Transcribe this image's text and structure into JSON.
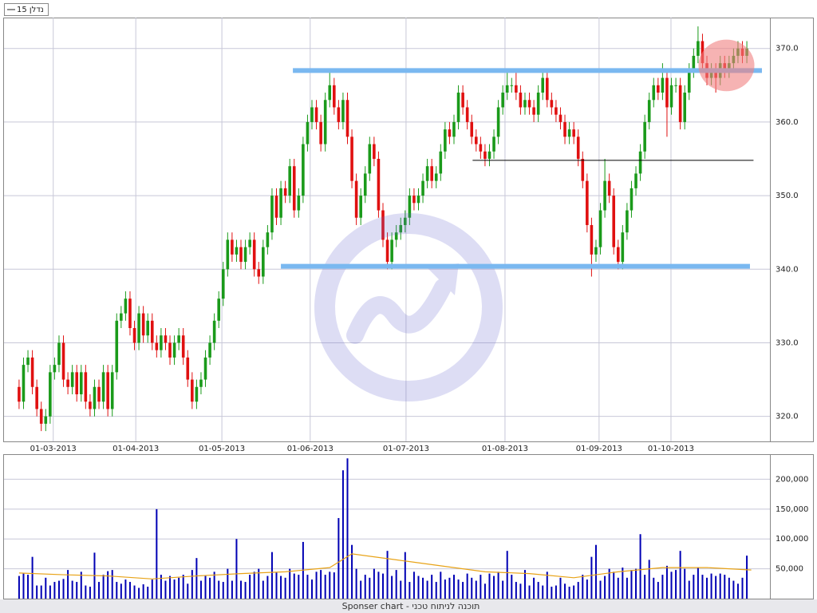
{
  "chart_data": [
    {
      "type": "candlestick",
      "legend": "נדלן 15",
      "xlim": [
        -3.4,
        169.2
      ],
      "xticks": [
        {
          "value": 7.7,
          "label": "01-03-2013"
        },
        {
          "value": 26.3,
          "label": "01-04-2013"
        },
        {
          "value": 45.7,
          "label": "01-05-2013"
        },
        {
          "value": 65.6,
          "label": "01-06-2013"
        },
        {
          "value": 87.2,
          "label": "01-07-2013"
        },
        {
          "value": 109.5,
          "label": "01-08-2013"
        },
        {
          "value": 130.7,
          "label": "01-09-2013"
        },
        {
          "value": 146.9,
          "label": "01-10-2013"
        }
      ],
      "ylim": [
        316.6,
        374.2
      ],
      "yticks": [
        {
          "value": 320,
          "label": "320.0"
        },
        {
          "value": 330,
          "label": "330.0"
        },
        {
          "value": 340,
          "label": "340.0"
        },
        {
          "value": 350,
          "label": "350.0"
        },
        {
          "value": 360,
          "label": "360.0"
        },
        {
          "value": 370,
          "label": "370.0"
        }
      ],
      "grid": true,
      "up_color": "#1a9a1a",
      "down_color": "#e01010",
      "values": [
        [
          324,
          325,
          321,
          322
        ],
        [
          322,
          328,
          321,
          327
        ],
        [
          327,
          329,
          326,
          328
        ],
        [
          328,
          329,
          323,
          324
        ],
        [
          324,
          325,
          320,
          321
        ],
        [
          321,
          322,
          318,
          319
        ],
        [
          319,
          321,
          318,
          320
        ],
        [
          320,
          327,
          319,
          326
        ],
        [
          326,
          328,
          325,
          327
        ],
        [
          327,
          331,
          326,
          330
        ],
        [
          330,
          331,
          324,
          325
        ],
        [
          325,
          326,
          323,
          324
        ],
        [
          324,
          327,
          323,
          326
        ],
        [
          326,
          327,
          322,
          323
        ],
        [
          323,
          327,
          322,
          326
        ],
        [
          326,
          327,
          321,
          322
        ],
        [
          322,
          323,
          320,
          321
        ],
        [
          321,
          325,
          320,
          324
        ],
        [
          324,
          325,
          321,
          322
        ],
        [
          322,
          327,
          321,
          326
        ],
        [
          326,
          327,
          320,
          321
        ],
        [
          321,
          327,
          320,
          326
        ],
        [
          326,
          334,
          325,
          333
        ],
        [
          333,
          335,
          332,
          334
        ],
        [
          334,
          337,
          333,
          336
        ],
        [
          336,
          337,
          331,
          332
        ],
        [
          332,
          333,
          329,
          330
        ],
        [
          330,
          335,
          329,
          334
        ],
        [
          334,
          335,
          330,
          331
        ],
        [
          331,
          334,
          330,
          333
        ],
        [
          333,
          334,
          329,
          330
        ],
        [
          330,
          331,
          328,
          329
        ],
        [
          329,
          332,
          328,
          331
        ],
        [
          331,
          332,
          329,
          330
        ],
        [
          330,
          331,
          327,
          328
        ],
        [
          328,
          331,
          327,
          330
        ],
        [
          330,
          332,
          329,
          331
        ],
        [
          331,
          332,
          327,
          328
        ],
        [
          328,
          329,
          324,
          325
        ],
        [
          325,
          326,
          321,
          322
        ],
        [
          322,
          325,
          321,
          324
        ],
        [
          324,
          326,
          323,
          325
        ],
        [
          325,
          329,
          324,
          328
        ],
        [
          328,
          331,
          327,
          330
        ],
        [
          330,
          334,
          329,
          333
        ],
        [
          333,
          337,
          332,
          336
        ],
        [
          336,
          341,
          335,
          340
        ],
        [
          340,
          345,
          339,
          344
        ],
        [
          344,
          345,
          341,
          342
        ],
        [
          342,
          344,
          341,
          343
        ],
        [
          343,
          344,
          340,
          341
        ],
        [
          341,
          344,
          340,
          343
        ],
        [
          343,
          345,
          342,
          344
        ],
        [
          344,
          345,
          339,
          340
        ],
        [
          340,
          341,
          338,
          339
        ],
        [
          339,
          344,
          338,
          343
        ],
        [
          343,
          346,
          342,
          345
        ],
        [
          345,
          351,
          344,
          350
        ],
        [
          350,
          351,
          346,
          347
        ],
        [
          347,
          352,
          346,
          351
        ],
        [
          351,
          352,
          349,
          350
        ],
        [
          350,
          355,
          349,
          354
        ],
        [
          354,
          355,
          347,
          348
        ],
        [
          348,
          351,
          347,
          350
        ],
        [
          350,
          358,
          349,
          357
        ],
        [
          357,
          361,
          356,
          360
        ],
        [
          360,
          363,
          359,
          362
        ],
        [
          362,
          363,
          359,
          360
        ],
        [
          360,
          361,
          356,
          357
        ],
        [
          357,
          364,
          356,
          363
        ],
        [
          363,
          367,
          362,
          365
        ],
        [
          365,
          366,
          361,
          362
        ],
        [
          362,
          363,
          359,
          360
        ],
        [
          360,
          364,
          359,
          363
        ],
        [
          363,
          364,
          357,
          358
        ],
        [
          358,
          359,
          351,
          352
        ],
        [
          352,
          353,
          346,
          347
        ],
        [
          347,
          351,
          346,
          350
        ],
        [
          350,
          354,
          349,
          353
        ],
        [
          353,
          358,
          352,
          357
        ],
        [
          357,
          358,
          354,
          355
        ],
        [
          355,
          356,
          347,
          348
        ],
        [
          348,
          349,
          343,
          344
        ],
        [
          344,
          345,
          340,
          341
        ],
        [
          341,
          345,
          340,
          344
        ],
        [
          344,
          346,
          343,
          345
        ],
        [
          345,
          347,
          344,
          346
        ],
        [
          346,
          348,
          345,
          347
        ],
        [
          347,
          351,
          346,
          350
        ],
        [
          350,
          351,
          348,
          349
        ],
        [
          349,
          351,
          348,
          350
        ],
        [
          350,
          353,
          349,
          352
        ],
        [
          352,
          355,
          351,
          354
        ],
        [
          354,
          355,
          351,
          352
        ],
        [
          352,
          354,
          351,
          353
        ],
        [
          353,
          357,
          352,
          356
        ],
        [
          356,
          360,
          355,
          359
        ],
        [
          359,
          360,
          357,
          358
        ],
        [
          358,
          361,
          357,
          360
        ],
        [
          360,
          365,
          359,
          364
        ],
        [
          364,
          365,
          361,
          362
        ],
        [
          362,
          363,
          359,
          360
        ],
        [
          360,
          361,
          357,
          358
        ],
        [
          358,
          359,
          356,
          357
        ],
        [
          357,
          358,
          355,
          356
        ],
        [
          356,
          357,
          354,
          355
        ],
        [
          355,
          357,
          354,
          356
        ],
        [
          356,
          359,
          355,
          358
        ],
        [
          358,
          363,
          357,
          362
        ],
        [
          362,
          365,
          361,
          364
        ],
        [
          364,
          367,
          363,
          365
        ],
        [
          365,
          366,
          364,
          365
        ],
        [
          365,
          367,
          363,
          364
        ],
        [
          364,
          365,
          361,
          362
        ],
        [
          362,
          364,
          361,
          363
        ],
        [
          363,
          364,
          361,
          362
        ],
        [
          362,
          363,
          360,
          361
        ],
        [
          361,
          365,
          360,
          364
        ],
        [
          364,
          367,
          363,
          366
        ],
        [
          366,
          367,
          362,
          363
        ],
        [
          363,
          364,
          361,
          362
        ],
        [
          362,
          363,
          360,
          361
        ],
        [
          361,
          362,
          359,
          360
        ],
        [
          360,
          361,
          357,
          358
        ],
        [
          358,
          360,
          357,
          359
        ],
        [
          359,
          360,
          357,
          358
        ],
        [
          358,
          359,
          354,
          355
        ],
        [
          355,
          356,
          351,
          352
        ],
        [
          352,
          353,
          345,
          346
        ],
        [
          346,
          347,
          339,
          342
        ],
        [
          342,
          344,
          341,
          343
        ],
        [
          343,
          349,
          342,
          348
        ],
        [
          348,
          355,
          347,
          352
        ],
        [
          352,
          353,
          349,
          350
        ],
        [
          350,
          351,
          342,
          343
        ],
        [
          343,
          344,
          340,
          341
        ],
        [
          341,
          346,
          340,
          345
        ],
        [
          345,
          349,
          344,
          348
        ],
        [
          348,
          352,
          347,
          351
        ],
        [
          351,
          354,
          350,
          353
        ],
        [
          353,
          357,
          352,
          356
        ],
        [
          356,
          361,
          355,
          360
        ],
        [
          360,
          364,
          359,
          363
        ],
        [
          363,
          366,
          362,
          365
        ],
        [
          365,
          366,
          363,
          364
        ],
        [
          364,
          368,
          363,
          366
        ],
        [
          366,
          367,
          358,
          362
        ],
        [
          362,
          366,
          361,
          365
        ],
        [
          365,
          366,
          364,
          365
        ],
        [
          365,
          366,
          359,
          360
        ],
        [
          360,
          365,
          359,
          364
        ],
        [
          364,
          368,
          363,
          367
        ],
        [
          367,
          370,
          366,
          369
        ],
        [
          369,
          373,
          368,
          371
        ],
        [
          371,
          372,
          367,
          368
        ],
        [
          368,
          369,
          365,
          366
        ],
        [
          366,
          368,
          365,
          367
        ],
        [
          367,
          368,
          364,
          366
        ],
        [
          366,
          369,
          365,
          368
        ],
        [
          368,
          369,
          366,
          367
        ],
        [
          367,
          369,
          366,
          368
        ],
        [
          368,
          370,
          367,
          369
        ],
        [
          369,
          371,
          368,
          370
        ],
        [
          370,
          371,
          368,
          369
        ],
        [
          369,
          371,
          368,
          370
        ]
      ],
      "annotations": [
        {
          "shape": "hline",
          "level": 367,
          "from": 61.7,
          "to": 167.4,
          "color": "#7ab8f0"
        },
        {
          "shape": "hline",
          "level": 340.4,
          "from": 59,
          "to": 164.7,
          "color": "#7ab8f0"
        },
        {
          "shape": "hline",
          "level": 354.8,
          "from": 102.2,
          "to": 165.5,
          "color": "#000000"
        },
        {
          "shape": "ellipse",
          "x": 159.4,
          "y": 367.7,
          "rx": 6.3,
          "ry": 3.5,
          "color": "#f08080"
        }
      ]
    },
    {
      "type": "bar",
      "xlim": [
        -3.4,
        169.2
      ],
      "ylim": [
        0,
        240700
      ],
      "yticks": [
        {
          "value": 50000,
          "label": "50,000"
        },
        {
          "value": 100000,
          "label": "100,000"
        },
        {
          "value": 150000,
          "label": "150,000"
        },
        {
          "value": 200000,
          "label": "200,000"
        }
      ],
      "grid": true,
      "color": "#0000b4",
      "values": [
        38000,
        42000,
        40000,
        70000,
        22000,
        22000,
        35000,
        22000,
        28000,
        30000,
        33000,
        48000,
        30000,
        28000,
        45000,
        22000,
        20000,
        77000,
        28000,
        40000,
        46000,
        48000,
        28000,
        25000,
        32000,
        28000,
        22000,
        18000,
        24000,
        20000,
        32000,
        150000,
        40000,
        30000,
        38000,
        32000,
        35000,
        40000,
        25000,
        48000,
        68000,
        30000,
        38000,
        35000,
        45000,
        30000,
        28000,
        50000,
        30000,
        100000,
        30000,
        28000,
        40000,
        45000,
        50000,
        30000,
        38000,
        78000,
        44000,
        38000,
        35000,
        50000,
        42000,
        40000,
        95000,
        40000,
        32000,
        45000,
        48000,
        40000,
        45000,
        44000,
        135000,
        215000,
        235000,
        90000,
        50000,
        30000,
        40000,
        35000,
        50000,
        45000,
        42000,
        80000,
        38000,
        48000,
        30000,
        78000,
        28000,
        45000,
        38000,
        35000,
        30000,
        40000,
        28000,
        45000,
        32000,
        35000,
        40000,
        32000,
        28000,
        42000,
        35000,
        30000,
        40000,
        25000,
        42000,
        38000,
        45000,
        30000,
        80000,
        40000,
        28000,
        25000,
        48000,
        22000,
        35000,
        28000,
        22000,
        45000,
        20000,
        22000,
        35000,
        25000,
        20000,
        22000,
        28000,
        40000,
        32000,
        70000,
        90000,
        30000,
        38000,
        50000,
        45000,
        35000,
        52000,
        35000,
        48000,
        50000,
        108000,
        40000,
        65000,
        35000,
        28000,
        40000,
        55000,
        45000,
        48000,
        80000,
        50000,
        30000,
        40000,
        52000,
        40000,
        35000,
        42000,
        38000,
        42000,
        40000,
        35000,
        30000,
        25000,
        35000,
        72000
      ],
      "moving_average": {
        "color": "#e8a317",
        "x": [
          0,
          10,
          20,
          30,
          40,
          50,
          60,
          70,
          75,
          85,
          95,
          105,
          115,
          125,
          135,
          145,
          155,
          165
        ],
        "values": [
          43000,
          40000,
          38000,
          33000,
          38000,
          42000,
          45000,
          52000,
          75000,
          65000,
          55000,
          45000,
          42000,
          35000,
          45000,
          52000,
          52000,
          48000
        ]
      }
    },
    {
      "footer": "Sponser chart - תוכנה לניתוח טכני"
    }
  ]
}
